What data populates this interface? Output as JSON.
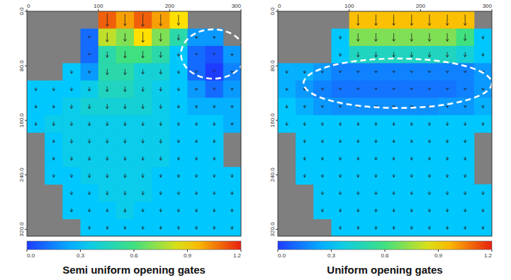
{
  "chart_data": [
    {
      "type": "heatmap",
      "title": "Semi uniform opening gates",
      "xlim": [
        0,
        300
      ],
      "xticks": [
        0,
        100,
        200,
        300
      ],
      "ylim": [
        0,
        330
      ],
      "yticks": [
        {
          "value": 0,
          "label": "0.0"
        },
        {
          "value": 80,
          "label": "80.0"
        },
        {
          "value": 160,
          "label": "160.0"
        },
        {
          "value": 240,
          "label": "240.0"
        },
        {
          "value": 320,
          "label": "320.0"
        }
      ],
      "colorbar_lim": [
        0,
        1.2
      ],
      "colorbar_ticks": [
        {
          "value": 0,
          "label": "0.0"
        },
        {
          "value": 0.3,
          "label": "0.3"
        },
        {
          "value": 0.6,
          "label": "0.6"
        },
        {
          "value": 0.9,
          "label": "0.9"
        },
        {
          "value": 1.2,
          "label": "1.2"
        }
      ],
      "cells": [
        [
          null,
          null,
          null,
          null,
          1.1,
          1.0,
          1.1,
          1.0,
          0.9,
          null,
          null,
          null
        ],
        [
          null,
          null,
          null,
          0.1,
          0.8,
          0.7,
          0.9,
          0.7,
          0.5,
          0.2,
          0.2,
          null
        ],
        [
          null,
          null,
          null,
          0.1,
          0.5,
          0.6,
          0.6,
          0.5,
          0.3,
          0.1,
          0.05,
          0.2
        ],
        [
          null,
          null,
          0.3,
          0.2,
          0.5,
          0.5,
          0.4,
          0.4,
          0.3,
          0.1,
          0.0,
          0.15
        ],
        [
          0.3,
          0.3,
          0.3,
          0.35,
          0.45,
          0.45,
          0.4,
          0.35,
          0.3,
          0.2,
          0.1,
          0.2
        ],
        [
          0.3,
          0.3,
          0.35,
          0.4,
          0.4,
          0.4,
          0.4,
          0.35,
          0.3,
          0.25,
          0.25,
          0.25
        ],
        [
          0.3,
          0.35,
          0.35,
          0.35,
          0.35,
          0.35,
          0.35,
          0.35,
          0.3,
          0.3,
          0.3,
          0.25
        ],
        [
          null,
          0.3,
          0.35,
          0.35,
          0.35,
          0.35,
          0.35,
          0.35,
          0.3,
          0.3,
          0.3,
          null
        ],
        [
          null,
          0.3,
          0.35,
          0.35,
          0.35,
          0.35,
          0.35,
          0.35,
          0.3,
          0.3,
          0.3,
          null
        ],
        [
          null,
          0.3,
          0.3,
          0.35,
          0.35,
          0.35,
          0.35,
          0.3,
          0.3,
          0.3,
          0.3,
          0.3
        ],
        [
          null,
          null,
          0.3,
          0.3,
          0.35,
          0.35,
          0.35,
          0.3,
          0.3,
          0.3,
          0.3,
          0.3
        ],
        [
          null,
          null,
          0.3,
          0.3,
          0.3,
          0.35,
          0.3,
          0.3,
          0.3,
          0.3,
          0.3,
          0.3
        ],
        [
          null,
          null,
          null,
          0.3,
          0.3,
          0.3,
          0.3,
          0.3,
          0.3,
          0.3,
          0.3,
          0.3
        ]
      ]
    },
    {
      "type": "heatmap",
      "title": "Uniform opening gates",
      "xlim": [
        0,
        300
      ],
      "xticks": [
        0,
        100,
        200,
        300
      ],
      "ylim": [
        0,
        330
      ],
      "yticks": [
        {
          "value": 0,
          "label": "0.0"
        },
        {
          "value": 80,
          "label": "80.0"
        },
        {
          "value": 160,
          "label": "160.0"
        },
        {
          "value": 240,
          "label": "240.0"
        },
        {
          "value": 320,
          "label": "320.0"
        }
      ],
      "colorbar_lim": [
        0,
        1.2
      ],
      "colorbar_ticks": [
        {
          "value": 0,
          "label": "0.0"
        },
        {
          "value": 0.3,
          "label": "0.3"
        },
        {
          "value": 0.6,
          "label": "0.6"
        },
        {
          "value": 0.9,
          "label": "0.9"
        },
        {
          "value": 1.2,
          "label": "1.2"
        }
      ],
      "cells": [
        [
          null,
          null,
          null,
          null,
          0.95,
          0.95,
          0.95,
          0.95,
          0.95,
          0.95,
          0.95,
          null
        ],
        [
          null,
          null,
          null,
          0.3,
          0.7,
          0.7,
          0.7,
          0.7,
          0.7,
          0.7,
          0.6,
          0.3
        ],
        [
          null,
          null,
          null,
          0.3,
          0.45,
          0.45,
          0.45,
          0.45,
          0.45,
          0.45,
          0.4,
          0.3
        ],
        [
          0.25,
          0.25,
          0.2,
          0.15,
          0.15,
          0.15,
          0.15,
          0.15,
          0.15,
          0.15,
          0.15,
          0.2
        ],
        [
          0.25,
          0.2,
          0.15,
          0.12,
          0.12,
          0.12,
          0.12,
          0.12,
          0.12,
          0.12,
          0.15,
          0.2
        ],
        [
          0.3,
          0.25,
          0.2,
          0.18,
          0.18,
          0.18,
          0.18,
          0.18,
          0.18,
          0.2,
          0.2,
          0.25
        ],
        [
          0.3,
          0.3,
          0.3,
          0.3,
          0.3,
          0.3,
          0.3,
          0.3,
          0.3,
          0.3,
          0.3,
          0.3
        ],
        [
          null,
          0.3,
          0.3,
          0.3,
          0.3,
          0.3,
          0.3,
          0.3,
          0.3,
          0.3,
          0.3,
          null
        ],
        [
          null,
          0.3,
          0.3,
          0.3,
          0.3,
          0.3,
          0.3,
          0.3,
          0.3,
          0.3,
          0.3,
          null
        ],
        [
          null,
          0.3,
          0.3,
          0.3,
          0.3,
          0.3,
          0.3,
          0.3,
          0.3,
          0.3,
          0.3,
          null
        ],
        [
          null,
          null,
          0.3,
          0.3,
          0.3,
          0.3,
          0.3,
          0.3,
          0.3,
          0.3,
          0.3,
          0.3
        ],
        [
          null,
          null,
          0.3,
          0.3,
          0.3,
          0.3,
          0.3,
          0.3,
          0.3,
          0.3,
          0.3,
          0.3
        ],
        [
          null,
          null,
          null,
          0.3,
          0.3,
          0.3,
          0.3,
          0.3,
          0.3,
          0.3,
          0.3,
          0.3
        ]
      ]
    }
  ]
}
